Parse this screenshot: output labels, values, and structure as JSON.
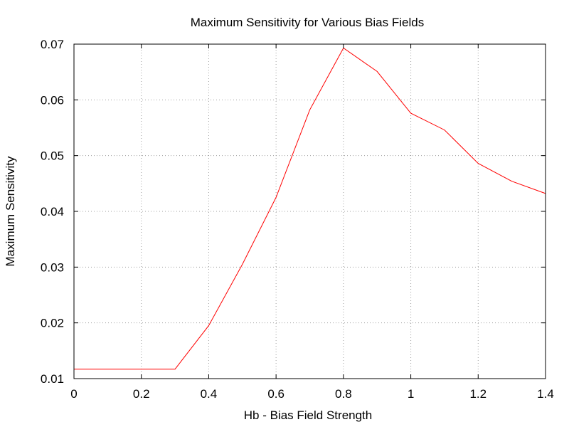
{
  "chart_data": {
    "type": "line",
    "title": "Maximum Sensitivity for Various Bias Fields",
    "xlabel": "Hb - Bias Field Strength",
    "ylabel": "Maximum Sensitivity",
    "xlim": [
      0,
      1.4
    ],
    "ylim": [
      0.01,
      0.07
    ],
    "x_ticks": [
      0,
      0.2,
      0.4,
      0.6,
      0.8,
      1,
      1.2,
      1.4
    ],
    "x_tick_labels": [
      "0",
      "0.2",
      "0.4",
      "0.6",
      "0.8",
      "1",
      "1.2",
      "1.4"
    ],
    "y_ticks": [
      0.01,
      0.02,
      0.03,
      0.04,
      0.05,
      0.06,
      0.07
    ],
    "y_tick_labels": [
      "0.01",
      "0.02",
      "0.03",
      "0.04",
      "0.05",
      "0.06",
      "0.07"
    ],
    "grid": true,
    "series": [
      {
        "color": "#ff0000",
        "x": [
          0,
          0.1,
          0.2,
          0.3,
          0.4,
          0.5,
          0.6,
          0.7,
          0.8,
          0.9,
          1.0,
          1.1,
          1.2,
          1.3,
          1.4
        ],
        "y": [
          0.0117,
          0.0117,
          0.0117,
          0.0117,
          0.0195,
          0.0305,
          0.0425,
          0.0582,
          0.0693,
          0.0651,
          0.0576,
          0.0546,
          0.0486,
          0.0454,
          0.0432
        ]
      }
    ]
  }
}
